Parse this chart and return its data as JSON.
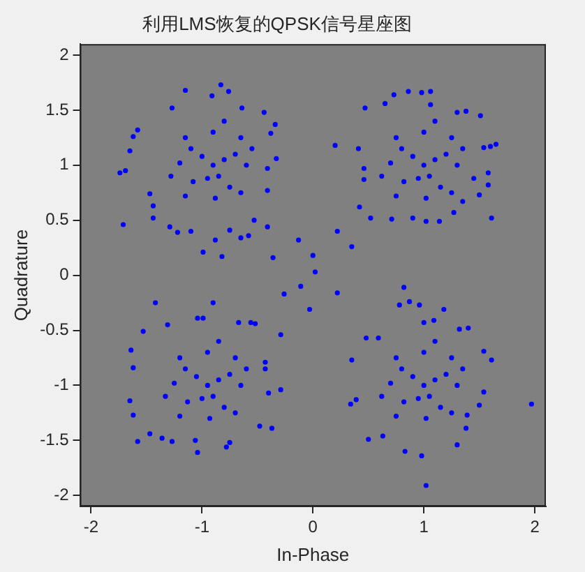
{
  "chart_data": {
    "type": "scatter",
    "title": "利用LMS恢复的QPSK信号星座图",
    "xlabel": "In-Phase",
    "ylabel": "Quadrature",
    "xlim": [
      -2.1,
      2.1
    ],
    "ylim": [
      -2.1,
      2.1
    ],
    "xticks": [
      -2,
      -1,
      0,
      1,
      2
    ],
    "yticks": [
      -2,
      -1.5,
      -1,
      -0.5,
      0,
      0.5,
      1,
      1.5,
      2
    ],
    "grid": false,
    "legend": false,
    "marker": "circle",
    "series": [
      {
        "color": "#0000ff",
        "x": [
          -0.83,
          -1.15,
          -0.91,
          -0.76,
          -1.27,
          -0.64,
          -0.44,
          -0.34,
          -0.38,
          -1.58,
          -1.62,
          -1.65,
          -1.74,
          -1.69,
          -0.33,
          -0.41,
          -0.41,
          -1.71,
          -1.44,
          -0.53,
          -0.41,
          -0.99,
          -0.88,
          -0.82,
          -0.65,
          -0.58,
          -0.75,
          -1.22,
          -1.1,
          -1.29,
          -1.44,
          -1.47,
          -0.13,
          -0.36,
          0.0,
          0.02,
          -0.9,
          -0.8,
          -1.0,
          -0.85,
          -0.95,
          -0.7,
          -1.1,
          -0.75,
          -1.08,
          -0.6,
          -1.2,
          -0.9,
          -0.88,
          -0.65,
          -1.15,
          -0.65,
          -1.15,
          -0.55,
          -1.28,
          -0.8,
          0.73,
          0.86,
          0.98,
          1.06,
          0.65,
          0.47,
          1.06,
          1.3,
          1.38,
          1.51,
          1.65,
          1.6,
          1.54,
          0.2,
          0.41,
          0.46,
          0.46,
          0.42,
          0.52,
          0.71,
          0.9,
          1.02,
          1.14,
          1.27,
          1.35,
          1.5,
          1.58,
          1.58,
          1.61,
          1.45,
          0.22,
          0.35,
          1.0,
          1.1,
          0.9,
          1.05,
          0.95,
          1.2,
          0.8,
          1.15,
          0.82,
          1.3,
          0.7,
          1.0,
          1.02,
          1.25,
          0.75,
          1.25,
          0.75,
          1.35,
          0.62,
          1.1,
          -1.42,
          -0.9,
          -0.26,
          -0.11,
          -0.03,
          -1.53,
          -1.64,
          -1.62,
          -1.65,
          -1.62,
          -1.58,
          -1.47,
          -1.36,
          -1.27,
          -1.04,
          -1.06,
          -0.78,
          -0.75,
          -0.48,
          -0.37,
          -0.29,
          -0.29,
          -0.43,
          -0.43,
          -0.52,
          -0.56,
          -0.67,
          -1.04,
          -0.99,
          -1.31,
          -0.4,
          -0.95,
          -0.85,
          -1.05,
          -0.9,
          -1.0,
          -0.75,
          -1.15,
          -0.8,
          -1.13,
          -0.65,
          -1.25,
          -0.95,
          -0.93,
          -0.7,
          -1.2,
          -0.7,
          -1.2,
          -0.6,
          -1.33,
          -0.85,
          0.82,
          0.22,
          0.78,
          0.87,
          0.96,
          1.18,
          0.48,
          0.35,
          0.34,
          0.39,
          0.5,
          0.63,
          0.83,
          0.98,
          1.02,
          1.3,
          1.38,
          1.39,
          1.5,
          1.54,
          1.61,
          1.54,
          1.97,
          1.32,
          1.4,
          1.09,
          1.0,
          0.59,
          1.0,
          1.1,
          0.9,
          1.05,
          0.95,
          1.2,
          0.8,
          1.15,
          0.82,
          1.3,
          0.7,
          1.0,
          1.02,
          1.25,
          0.75,
          1.25,
          0.75,
          1.35,
          0.62,
          1.1
        ],
        "values": [
          1.73,
          1.68,
          1.63,
          1.67,
          1.52,
          1.52,
          1.48,
          1.37,
          1.29,
          1.32,
          1.26,
          1.13,
          0.93,
          0.95,
          1.06,
          0.97,
          0.77,
          0.46,
          0.52,
          0.5,
          0.44,
          0.21,
          0.32,
          0.17,
          0.34,
          0.36,
          0.41,
          0.39,
          0.4,
          0.44,
          0.63,
          0.74,
          0.32,
          0.16,
          0.18,
          0.03,
          1.0,
          1.05,
          1.08,
          0.9,
          0.88,
          1.1,
          1.15,
          0.8,
          0.85,
          1.0,
          1.02,
          1.3,
          0.7,
          1.25,
          1.25,
          0.75,
          0.72,
          1.15,
          0.9,
          1.4,
          1.64,
          1.67,
          1.66,
          1.67,
          1.56,
          1.52,
          1.55,
          1.48,
          1.49,
          1.45,
          1.19,
          1.17,
          1.16,
          1.18,
          1.15,
          0.97,
          0.87,
          0.62,
          0.52,
          0.51,
          0.52,
          0.49,
          0.49,
          0.57,
          0.67,
          0.73,
          0.82,
          0.93,
          0.52,
          0.88,
          0.4,
          0.26,
          1.0,
          1.05,
          1.08,
          0.9,
          0.88,
          1.1,
          1.15,
          0.8,
          0.85,
          1.0,
          1.02,
          1.3,
          0.7,
          1.25,
          1.25,
          0.75,
          0.72,
          1.15,
          0.9,
          1.4,
          -0.25,
          -0.25,
          -0.17,
          -0.1,
          -0.31,
          -0.51,
          -0.68,
          -0.84,
          -1.14,
          -1.27,
          -1.51,
          -1.44,
          -1.48,
          -1.51,
          -1.61,
          -1.5,
          -1.56,
          -1.52,
          -1.37,
          -1.39,
          -1.04,
          -0.54,
          -0.79,
          -0.85,
          -0.44,
          -0.43,
          -0.43,
          -0.39,
          -0.39,
          -0.45,
          -1.07,
          -1.0,
          -0.95,
          -0.92,
          -1.1,
          -1.12,
          -0.9,
          -0.85,
          -1.2,
          -1.15,
          -1.0,
          -0.98,
          -0.7,
          -1.3,
          -0.75,
          -0.75,
          -1.25,
          -1.28,
          -0.85,
          -1.1,
          -0.6,
          -0.11,
          -0.16,
          -0.27,
          -0.24,
          -0.27,
          -0.31,
          -0.57,
          -0.77,
          -1.17,
          -1.13,
          -1.49,
          -1.46,
          -1.6,
          -1.64,
          -1.91,
          -1.54,
          -1.39,
          -1.27,
          -1.18,
          -1.06,
          -0.77,
          -0.69,
          -1.17,
          -0.49,
          -0.48,
          -0.41,
          -0.43,
          -0.57,
          -1.0,
          -0.95,
          -0.92,
          -1.1,
          -1.12,
          -0.9,
          -0.85,
          -1.2,
          -1.15,
          -1.0,
          -0.98,
          -0.7,
          -1.3,
          -0.75,
          -0.75,
          -1.25,
          -1.28,
          -0.85,
          -1.1,
          -0.6
        ]
      }
    ]
  }
}
